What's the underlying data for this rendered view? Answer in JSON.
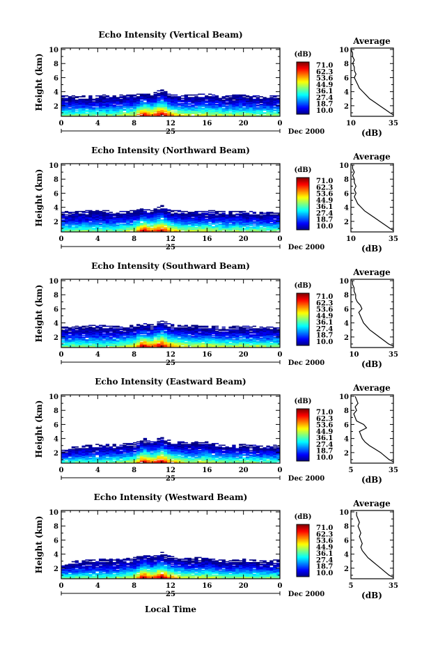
{
  "chart_data": [
    {
      "type": "heatmap",
      "title": "Echo Intensity (Vertical Beam)",
      "ylabel": "Height (km)",
      "x_ticks": [
        "0",
        "4",
        "8",
        "12",
        "16",
        "20",
        "0"
      ],
      "y_ticks": [
        "2",
        "4",
        "6",
        "8",
        "10"
      ],
      "day_label": "25",
      "month_label": "Dec 2000",
      "xlim": [
        0,
        24
      ],
      "ylim": [
        0.5,
        10.2
      ],
      "colorbar_unit": "(dB)",
      "colorbar_ticks": [
        "71.0",
        "62.3",
        "53.6",
        "44.9",
        "36.1",
        "27.4",
        "18.7",
        "10.0"
      ],
      "intensity_profile": {
        "x": [
          0,
          2,
          4,
          6,
          8,
          9,
          10,
          11,
          12,
          14,
          16,
          18,
          20,
          22,
          24
        ],
        "top_km": [
          3.3,
          3.2,
          3.3,
          3.4,
          3.4,
          3.8,
          3.6,
          4.2,
          3.5,
          3.4,
          3.5,
          3.3,
          3.4,
          3.2,
          3.3
        ],
        "peak_db": [
          40,
          42,
          40,
          41,
          48,
          68,
          58,
          70,
          55,
          45,
          47,
          43,
          44,
          42,
          41
        ]
      },
      "average": {
        "title": "Average",
        "xlabel": "(dB)",
        "x_ticks": [
          "10",
          "35"
        ],
        "xlim": [
          10,
          35
        ],
        "y_ticks": [
          "2",
          "4",
          "6",
          "8",
          "10"
        ],
        "height_km": [
          0.7,
          1.0,
          1.5,
          2.0,
          2.5,
          3.0,
          3.5,
          4.0,
          4.5,
          5.0,
          5.5,
          6.0,
          6.5,
          7.0,
          7.5,
          8.0,
          8.5,
          9.0,
          9.5,
          10.0
        ],
        "db": [
          35,
          33,
          30,
          27,
          24,
          21,
          19,
          17,
          15,
          14,
          13,
          12,
          13,
          12,
          12,
          11,
          12,
          11,
          11,
          10
        ]
      }
    },
    {
      "type": "heatmap",
      "title": "Echo Intensity (Northward Beam)",
      "ylabel": "Height (km)",
      "x_ticks": [
        "0",
        "4",
        "8",
        "12",
        "16",
        "20",
        "0"
      ],
      "y_ticks": [
        "2",
        "4",
        "6",
        "8",
        "10"
      ],
      "day_label": "25",
      "month_label": "Dec 2000",
      "xlim": [
        0,
        24
      ],
      "ylim": [
        0.5,
        10.2
      ],
      "colorbar_unit": "(dB)",
      "colorbar_ticks": [
        "71.0",
        "62.3",
        "53.6",
        "44.9",
        "36.1",
        "27.4",
        "18.7",
        "10.0"
      ],
      "intensity_profile": {
        "x": [
          0,
          2,
          4,
          6,
          8,
          9,
          10,
          11,
          12,
          14,
          16,
          18,
          20,
          22,
          24
        ],
        "top_km": [
          3.2,
          3.3,
          3.4,
          3.3,
          3.4,
          3.7,
          3.5,
          4.1,
          3.4,
          3.3,
          3.4,
          3.2,
          3.3,
          3.1,
          3.2
        ],
        "peak_db": [
          38,
          40,
          39,
          40,
          47,
          66,
          57,
          68,
          54,
          44,
          46,
          42,
          43,
          41,
          40
        ]
      },
      "average": {
        "title": "Average",
        "xlabel": "(dB)",
        "x_ticks": [
          "10",
          "35"
        ],
        "xlim": [
          10,
          35
        ],
        "y_ticks": [
          "2",
          "4",
          "6",
          "8",
          "10"
        ],
        "height_km": [
          0.7,
          1.0,
          1.5,
          2.0,
          2.5,
          3.0,
          3.5,
          4.0,
          4.5,
          5.0,
          5.5,
          6.0,
          6.5,
          7.0,
          7.5,
          8.0,
          8.5,
          9.0,
          9.5,
          10.0
        ],
        "db": [
          35,
          33,
          30,
          27,
          24,
          21,
          18,
          16,
          14,
          13,
          12,
          13,
          12,
          13,
          12,
          12,
          11,
          12,
          11,
          11
        ]
      }
    },
    {
      "type": "heatmap",
      "title": "Echo Intensity (Southward Beam)",
      "ylabel": "Height (km)",
      "x_ticks": [
        "0",
        "4",
        "8",
        "12",
        "16",
        "20",
        "0"
      ],
      "y_ticks": [
        "2",
        "4",
        "6",
        "8",
        "10"
      ],
      "day_label": "25",
      "month_label": "Dec 2000",
      "xlim": [
        0,
        24
      ],
      "ylim": [
        0.5,
        10.2
      ],
      "colorbar_unit": "(dB)",
      "colorbar_ticks": [
        "71.0",
        "62.3",
        "53.6",
        "44.9",
        "36.1",
        "27.4",
        "18.7",
        "10.0"
      ],
      "intensity_profile": {
        "x": [
          0,
          2,
          4,
          6,
          8,
          9,
          10,
          11,
          12,
          14,
          16,
          18,
          20,
          22,
          24
        ],
        "top_km": [
          3.3,
          3.4,
          3.5,
          3.4,
          3.5,
          3.8,
          3.6,
          4.2,
          3.6,
          3.5,
          3.4,
          3.3,
          3.4,
          3.3,
          3.3
        ],
        "peak_db": [
          40,
          41,
          40,
          42,
          48,
          68,
          58,
          70,
          56,
          46,
          47,
          44,
          45,
          43,
          42
        ]
      },
      "average": {
        "title": "Average",
        "xlabel": "(dB)",
        "x_ticks": [
          "10",
          "35"
        ],
        "xlim": [
          8,
          35
        ],
        "y_ticks": [
          "2",
          "4",
          "6",
          "8",
          "10"
        ],
        "height_km": [
          0.7,
          1.0,
          1.5,
          2.0,
          2.5,
          3.0,
          3.5,
          4.0,
          4.5,
          5.0,
          5.5,
          6.0,
          6.5,
          7.0,
          7.5,
          8.0,
          8.5,
          9.0,
          9.5,
          10.0
        ],
        "db": [
          35,
          32,
          29,
          26,
          23,
          20,
          18,
          16,
          15,
          14,
          13,
          15,
          14,
          12,
          11,
          11,
          10,
          10,
          9,
          9
        ]
      }
    },
    {
      "type": "heatmap",
      "title": "Echo Intensity (Eastward Beam)",
      "ylabel": "Height (km)",
      "x_ticks": [
        "0",
        "4",
        "8",
        "12",
        "16",
        "20",
        "0"
      ],
      "y_ticks": [
        "2",
        "4",
        "6",
        "8",
        "10"
      ],
      "day_label": "25",
      "month_label": "Dec 2000",
      "xlim": [
        0,
        24
      ],
      "ylim": [
        0.5,
        10.2
      ],
      "colorbar_unit": "(dB)",
      "colorbar_ticks": [
        "71.0",
        "62.3",
        "53.6",
        "44.9",
        "36.1",
        "27.4",
        "18.7",
        "10.0"
      ],
      "intensity_profile": {
        "x": [
          0,
          2,
          4,
          6,
          8,
          9,
          10,
          11,
          12,
          14,
          16,
          18,
          20,
          22,
          24
        ],
        "top_km": [
          2.3,
          2.8,
          3.0,
          3.0,
          3.2,
          3.9,
          3.5,
          4.1,
          3.5,
          3.3,
          3.4,
          2.9,
          3.0,
          2.8,
          2.9
        ],
        "peak_db": [
          36,
          38,
          38,
          40,
          46,
          66,
          56,
          68,
          54,
          44,
          45,
          41,
          42,
          40,
          39
        ]
      },
      "average": {
        "title": "Average",
        "xlabel": "(dB)",
        "x_ticks": [
          "5",
          "35"
        ],
        "xlim": [
          5,
          35
        ],
        "y_ticks": [
          "2",
          "4",
          "6",
          "8",
          "10"
        ],
        "height_km": [
          0.7,
          1.0,
          1.5,
          2.0,
          2.5,
          3.0,
          3.5,
          4.0,
          4.5,
          5.0,
          5.5,
          6.0,
          6.5,
          7.0,
          7.5,
          8.0,
          8.5,
          9.0,
          9.5,
          10.0
        ],
        "db": [
          35,
          32,
          29,
          26,
          22,
          18,
          15,
          13,
          12,
          11,
          16,
          14,
          9,
          8,
          7,
          9,
          8,
          10,
          9,
          8
        ]
      }
    },
    {
      "type": "heatmap",
      "title": "Echo Intensity (Westward Beam)",
      "ylabel": "Height (km)",
      "x_ticks": [
        "0",
        "4",
        "8",
        "12",
        "16",
        "20",
        "0"
      ],
      "y_ticks": [
        "2",
        "4",
        "6",
        "8",
        "10"
      ],
      "day_label": "25",
      "month_label": "Dec 2000",
      "xlim": [
        0,
        24
      ],
      "ylim": [
        0.5,
        10.2
      ],
      "colorbar_unit": "(dB)",
      "colorbar_ticks": [
        "71.0",
        "62.3",
        "53.6",
        "44.9",
        "36.1",
        "27.4",
        "18.7",
        "10.0"
      ],
      "intensity_profile": {
        "x": [
          0,
          2,
          4,
          6,
          8,
          9,
          10,
          11,
          12,
          14,
          16,
          18,
          20,
          22,
          24
        ],
        "top_km": [
          2.6,
          2.9,
          3.1,
          3.1,
          3.3,
          3.8,
          3.5,
          4.1,
          3.5,
          3.3,
          3.4,
          3.0,
          3.1,
          2.9,
          3.0
        ],
        "peak_db": [
          37,
          39,
          38,
          40,
          47,
          67,
          57,
          69,
          55,
          45,
          46,
          42,
          43,
          41,
          40
        ]
      },
      "average": {
        "title": "Average",
        "xlabel": "(dB)",
        "x_ticks": [
          "5",
          "35"
        ],
        "xlim": [
          5,
          35
        ],
        "y_ticks": [
          "2",
          "4",
          "6",
          "8",
          "10"
        ],
        "height_km": [
          0.7,
          1.0,
          1.5,
          2.0,
          2.5,
          3.0,
          3.5,
          4.0,
          4.5,
          5.0,
          5.5,
          6.0,
          6.5,
          7.0,
          7.5,
          8.0,
          8.5,
          9.0,
          9.5,
          10.0
        ],
        "db": [
          35,
          32,
          29,
          26,
          23,
          20,
          17,
          15,
          13,
          12,
          13,
          12,
          11,
          12,
          11,
          10,
          11,
          10,
          9,
          9
        ]
      }
    }
  ],
  "footer": {
    "xlabel": "Local Time"
  }
}
